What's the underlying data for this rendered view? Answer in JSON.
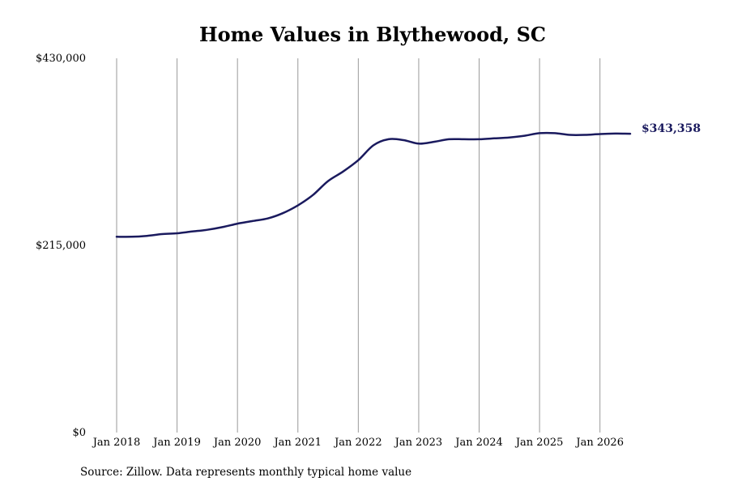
{
  "chart_data": {
    "type": "line",
    "title": "Home Values in Blythewood, SC",
    "source": "Source: Zillow. Data represents monthly typical home value",
    "ylim": [
      0,
      430000
    ],
    "y_ticks": [
      {
        "value": 0,
        "label": "$0"
      },
      {
        "value": 215000,
        "label": "$215,000"
      },
      {
        "value": 430000,
        "label": "$430,000"
      }
    ],
    "x_ticks": [
      {
        "value": 2018.0,
        "label": "Jan 2018"
      },
      {
        "value": 2019.0,
        "label": "Jan 2019"
      },
      {
        "value": 2020.0,
        "label": "Jan 2020"
      },
      {
        "value": 2021.0,
        "label": "Jan 2021"
      },
      {
        "value": 2022.0,
        "label": "Jan 2022"
      },
      {
        "value": 2023.0,
        "label": "Jan 2023"
      },
      {
        "value": 2024.0,
        "label": "Jan 2024"
      },
      {
        "value": 2025.0,
        "label": "Jan 2025"
      },
      {
        "value": 2026.0,
        "label": "Jan 2026"
      }
    ],
    "xlim": [
      2018.0,
      2026.5
    ],
    "grid": "vertical",
    "line_color": "#1a1a5e",
    "series": [
      {
        "x": [
          2018.0,
          2018.25,
          2018.5,
          2018.75,
          2019.0,
          2019.25,
          2019.5,
          2019.75,
          2020.0,
          2020.25,
          2020.5,
          2020.75,
          2021.0,
          2021.25,
          2021.5,
          2021.75,
          2022.0,
          2022.25,
          2022.5,
          2022.75,
          2023.0,
          2023.25,
          2023.5,
          2023.75,
          2024.0,
          2024.25,
          2024.5,
          2024.75,
          2025.0,
          2025.25,
          2025.5,
          2025.75,
          2026.0,
          2026.25,
          2026.5
        ],
        "values": [
          225000,
          225000,
          226000,
          228000,
          229000,
          231000,
          233000,
          236000,
          240000,
          243000,
          246000,
          252000,
          261000,
          273000,
          289000,
          300000,
          313000,
          330000,
          337000,
          336000,
          332000,
          334000,
          337000,
          337000,
          337000,
          338000,
          339000,
          341000,
          344000,
          344000,
          342000,
          342000,
          343000,
          343500,
          343358
        ]
      }
    ],
    "end_label": "$343,358"
  }
}
